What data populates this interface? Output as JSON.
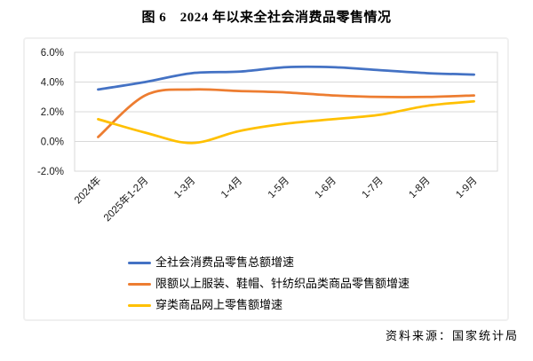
{
  "page": {
    "title": "图 6　2024 年以来全社会消费品零售情况",
    "source": "资料来源：国家统计局"
  },
  "chart_data": {
    "type": "line",
    "smooth": true,
    "title": "图 6　2024 年以来全社会消费品零售情况",
    "categories": [
      "2024年",
      "2025年1-2月",
      "1-3月",
      "1-4月",
      "1-5月",
      "1-6月",
      "1-7月",
      "1-8月",
      "1-9月"
    ],
    "series": [
      {
        "name": "全社会消费品零售总额增速",
        "color": "#4472C4",
        "values": [
          3.5,
          4.0,
          4.6,
          4.7,
          5.0,
          5.0,
          4.8,
          4.6,
          4.5
        ]
      },
      {
        "name": "限额以上服装、鞋帽、针纺织品类商品零售额增速",
        "color": "#ED7D31",
        "values": [
          0.3,
          3.1,
          3.5,
          3.4,
          3.3,
          3.1,
          3.0,
          3.0,
          3.1
        ]
      },
      {
        "name": "穿类商品网上零售额增速",
        "color": "#FFC000",
        "values": [
          1.5,
          0.6,
          -0.1,
          0.7,
          1.2,
          1.5,
          1.8,
          2.4,
          2.7
        ]
      }
    ],
    "y_axis": {
      "min": -2,
      "max": 6,
      "tick_step": 2,
      "tick_labels": [
        "6.0%",
        "4.0%",
        "2.0%",
        "0.0%",
        "-2.0%"
      ],
      "unit": "%"
    },
    "x_axis": {
      "label_rotation_deg": -45
    },
    "grid": true,
    "legend_position": "bottom-left",
    "source": "资料来源：国家统计局"
  },
  "colors": {
    "grid": "#d9d9d9",
    "frame": "#d9d9d9",
    "axis_text": "#1a1a1a",
    "box_border": "#f0f0f0"
  }
}
